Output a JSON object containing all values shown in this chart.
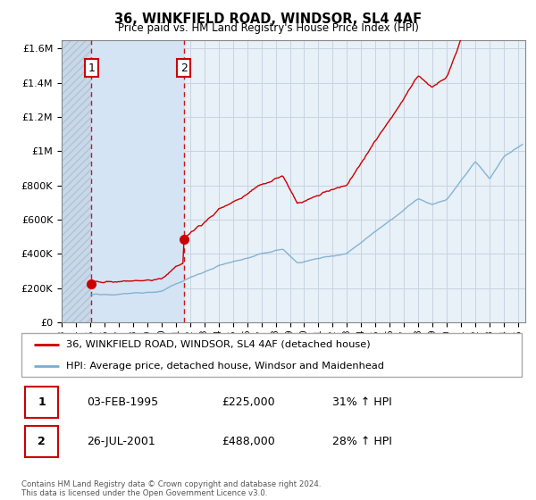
{
  "title": "36, WINKFIELD ROAD, WINDSOR, SL4 4AF",
  "subtitle": "Price paid vs. HM Land Registry's House Price Index (HPI)",
  "sale1_date": 1995.09,
  "sale1_price": 225000,
  "sale1_label": "1",
  "sale2_date": 2001.57,
  "sale2_price": 488000,
  "sale2_label": "2",
  "ylim_max": 1650000,
  "ylim_min": 0,
  "xlim_min": 1993.0,
  "xlim_max": 2025.5,
  "legend_line1": "36, WINKFIELD ROAD, WINDSOR, SL4 4AF (detached house)",
  "legend_line2": "HPI: Average price, detached house, Windsor and Maidenhead",
  "table_row1": [
    "1",
    "03-FEB-1995",
    "£225,000",
    "31% ↑ HPI"
  ],
  "table_row2": [
    "2",
    "26-JUL-2001",
    "£488,000",
    "28% ↑ HPI"
  ],
  "footer": "Contains HM Land Registry data © Crown copyright and database right 2024.\nThis data is licensed under the Open Government Licence v3.0.",
  "line_color_red": "#cc0000",
  "line_color_blue": "#7aadcf",
  "plot_bg_color": "#e8f0f8",
  "hatch_bg_color": "#c8d8e8"
}
